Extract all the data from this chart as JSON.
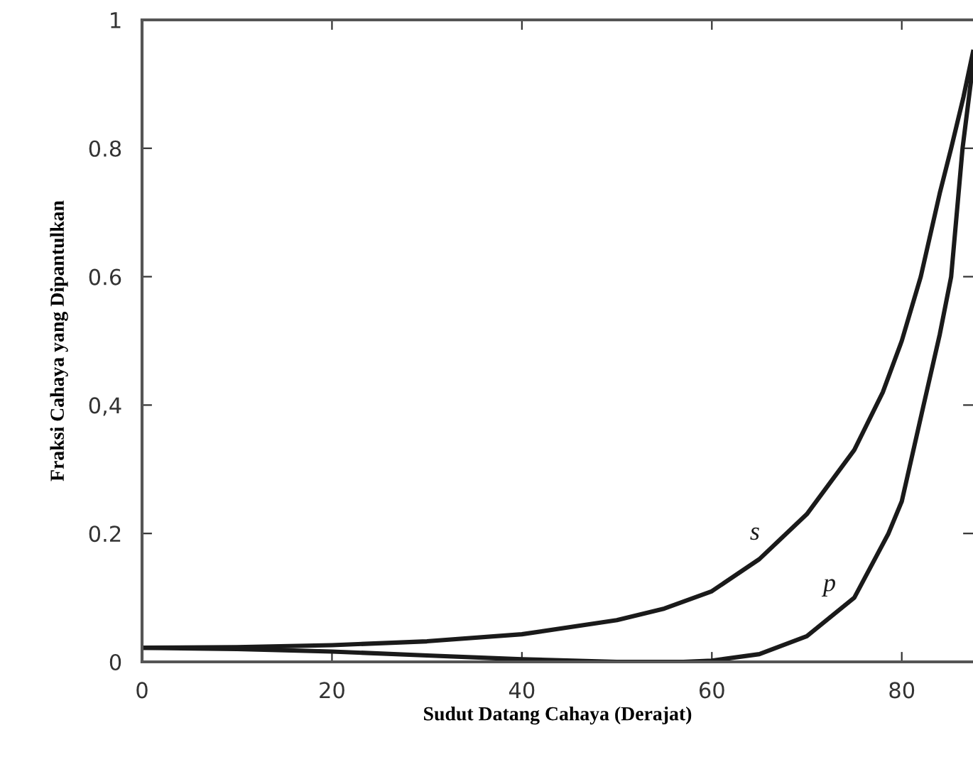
{
  "chart_data": {
    "type": "line",
    "xlabel": "Sudut Datang Cahaya (Derajat)",
    "ylabel": "Fraksi Cahaya yang Dipantulkan",
    "xlim": [
      0,
      87.5
    ],
    "ylim": [
      0,
      1
    ],
    "xticks": [
      0,
      20,
      40,
      60,
      80
    ],
    "yticks": [
      0,
      {
        "value": 0.2,
        "label": "0.2"
      },
      {
        "value": 0.4,
        "label": "0,4"
      },
      {
        "value": 0.6,
        "label": "0.6"
      },
      {
        "value": 0.8,
        "label": "0.8"
      },
      1
    ],
    "grid": false,
    "legend": false,
    "marker": "none",
    "line_style": "solid",
    "series": [
      {
        "name": "s",
        "color": "#1a1a1a",
        "x": [
          0,
          10,
          20,
          30,
          40,
          50,
          55,
          60,
          65,
          70,
          75,
          78,
          80,
          82,
          84,
          85.2,
          86.5,
          87.5
        ],
        "values": [
          0.022,
          0.023,
          0.026,
          0.032,
          0.043,
          0.065,
          0.083,
          0.11,
          0.16,
          0.23,
          0.33,
          0.42,
          0.5,
          0.6,
          0.73,
          0.8,
          0.88,
          0.95
        ]
      },
      {
        "name": "p",
        "color": "#1a1a1a",
        "x": [
          0,
          10,
          20,
          30,
          40,
          50,
          57,
          60,
          65,
          70,
          75,
          78.6,
          80,
          82.3,
          84,
          85.2,
          86.4,
          87.5
        ],
        "values": [
          0.022,
          0.02,
          0.016,
          0.01,
          0.004,
          0.0,
          0.0,
          0.002,
          0.012,
          0.04,
          0.1,
          0.2,
          0.25,
          0.4,
          0.51,
          0.6,
          0.8,
          0.93
        ]
      }
    ]
  }
}
